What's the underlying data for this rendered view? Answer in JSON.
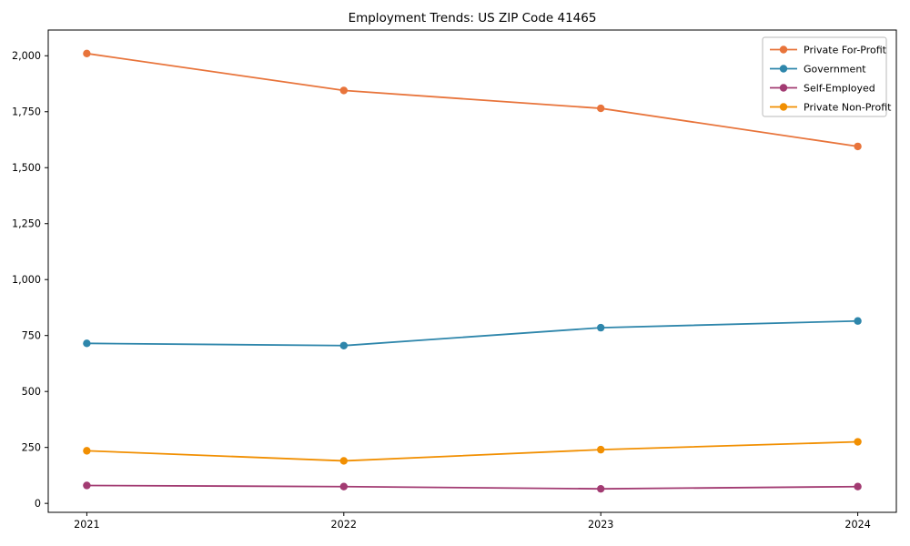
{
  "chart_data": {
    "type": "line",
    "title": "Employment Trends: US ZIP Code 41465",
    "xlabel": "",
    "ylabel": "",
    "x": [
      "2021",
      "2022",
      "2023",
      "2024"
    ],
    "series": [
      {
        "name": "Private For-Profit",
        "color": "#E8743B",
        "values": [
          2010,
          1845,
          1765,
          1595
        ]
      },
      {
        "name": "Government",
        "color": "#2E86AB",
        "values": [
          715,
          705,
          785,
          815
        ]
      },
      {
        "name": "Self-Employed",
        "color": "#A23B72",
        "values": [
          80,
          75,
          65,
          75
        ]
      },
      {
        "name": "Private Non-Profit",
        "color": "#F18F01",
        "values": [
          235,
          190,
          240,
          275
        ]
      }
    ],
    "ylim": [
      -40,
      2115
    ],
    "yticks": [
      {
        "value": 0,
        "label": "0"
      },
      {
        "value": 250,
        "label": "250"
      },
      {
        "value": 500,
        "label": "500"
      },
      {
        "value": 750,
        "label": "750"
      },
      {
        "value": 1000,
        "label": "1,000"
      },
      {
        "value": 1250,
        "label": "1,250"
      },
      {
        "value": 1500,
        "label": "1,500"
      },
      {
        "value": 1750,
        "label": "1,750"
      },
      {
        "value": 2000,
        "label": "2,000"
      }
    ],
    "grid": false,
    "axis_color": "#000000",
    "marker": "circle",
    "legend": {
      "position": "upper right",
      "background": "#ffffff",
      "border_color": "#b9b9b9",
      "entries": [
        "Private For-Profit",
        "Government",
        "Self-Employed",
        "Private Non-Profit"
      ]
    }
  }
}
